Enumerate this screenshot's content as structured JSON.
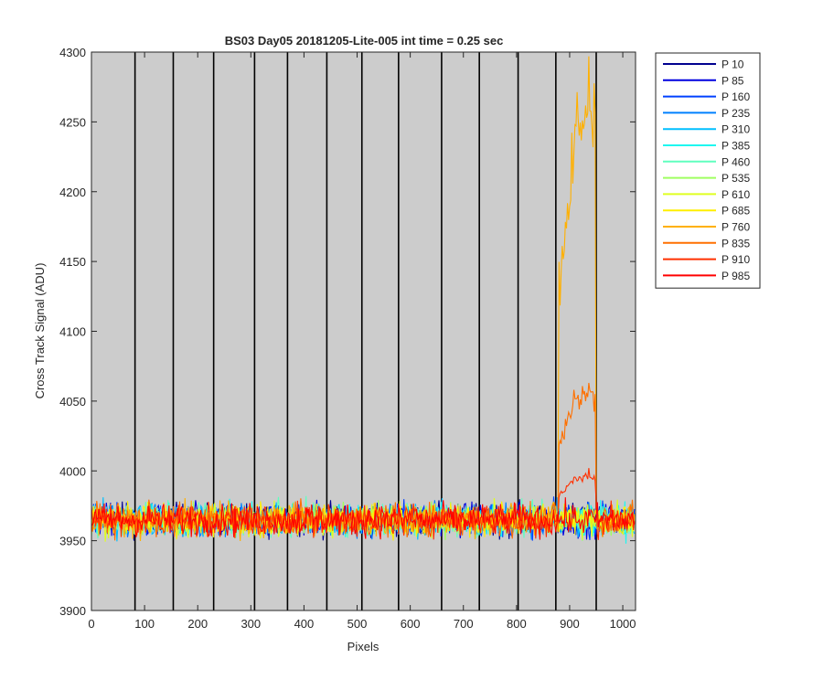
{
  "chart_data": {
    "type": "line",
    "title": "BS03 Day05 20181205-Lite-005 int time = 0.25 sec",
    "xlabel": "Pixels",
    "ylabel": "Cross Track Signal (ADU)",
    "xlim": [
      0,
      1024
    ],
    "ylim": [
      3900,
      4300
    ],
    "xticks": [
      0,
      100,
      200,
      300,
      400,
      500,
      600,
      700,
      800,
      900,
      1000
    ],
    "yticks": [
      3900,
      3950,
      4000,
      4050,
      4100,
      4150,
      4200,
      4250,
      4300
    ],
    "grid": false,
    "plot_background": "#cccccc",
    "vertical_lines_x": [
      82,
      154,
      230,
      307,
      369,
      443,
      509,
      578,
      659,
      730,
      803,
      874,
      950
    ],
    "legend_placement": "outside-top-right",
    "baseline_level": 3965,
    "noise_amplitude": 18,
    "series": [
      {
        "name": "P 10",
        "color": "#00008f"
      },
      {
        "name": "P 85",
        "color": "#0000df"
      },
      {
        "name": "P 160",
        "color": "#0040ff"
      },
      {
        "name": "P 235",
        "color": "#0080ff"
      },
      {
        "name": "P 310",
        "color": "#00bfff"
      },
      {
        "name": "P 385",
        "color": "#1ff7f0"
      },
      {
        "name": "P 460",
        "color": "#60ffbf"
      },
      {
        "name": "P 535",
        "color": "#9fff60"
      },
      {
        "name": "P 610",
        "color": "#dfff20"
      },
      {
        "name": "P 685",
        "color": "#ffef00"
      },
      {
        "name": "P 760",
        "color": "#ffb000",
        "bump": {
          "x_start": 880,
          "x_end": 948,
          "peak": 4250,
          "max": 4297
        }
      },
      {
        "name": "P 835",
        "color": "#ff7000",
        "bump": {
          "x_start": 880,
          "x_end": 948,
          "peak": 4055,
          "max": 4063
        }
      },
      {
        "name": "P 910",
        "color": "#ff3000",
        "bump": {
          "x_start": 880,
          "x_end": 948,
          "peak": 3995,
          "max": 4002
        }
      },
      {
        "name": "P 985",
        "color": "#ff0000"
      }
    ]
  }
}
